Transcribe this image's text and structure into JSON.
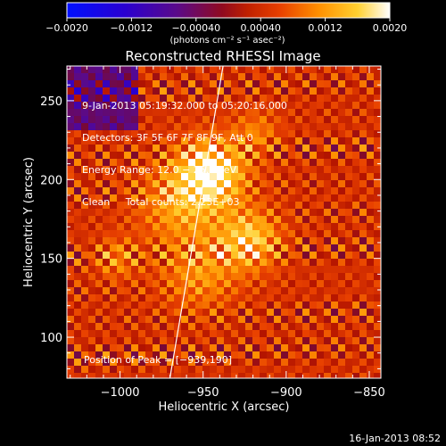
{
  "chart_data": {
    "type": "heatmap",
    "title": "Reconstructed RHESSI Image",
    "xlabel": "Heliocentric X (arcsec)",
    "ylabel": "Heliocentric Y (arcsec)",
    "xlim": [
      -1032,
      -843
    ],
    "ylim": [
      74,
      272
    ],
    "x_ticks": [
      -1000,
      -950,
      -900,
      -850
    ],
    "y_ticks": [
      100,
      150,
      200,
      250
    ],
    "x_tick_labels": [
      "−1000",
      "−950",
      "−900",
      "−850"
    ],
    "y_tick_labels": [
      "100",
      "150",
      "200",
      "250"
    ],
    "colorbar": {
      "min": -0.002,
      "max": 0.002,
      "ticks": [
        -0.002,
        -0.0012,
        -0.0004,
        0.0004,
        0.0012,
        0.002
      ],
      "tick_labels": [
        "−0.0020",
        "−0.0012",
        "−0.00040",
        "0.00040",
        "0.0012",
        "0.0020"
      ],
      "unit_label": "(photons cm⁻² s⁻¹ asec⁻²)",
      "colors": [
        "#0010ff",
        "#3a00c0",
        "#5a0a8a",
        "#b02000",
        "#e84000",
        "#ff9000",
        "#ffd030",
        "#ffffff"
      ]
    },
    "info_lines": [
      "9-Jan-2013 05:19:32.000 to 05:20:16.000",
      "Detectors: 3F 5F 6F 7F 8F 9F, Att 0",
      "Energy Range: 12.0 − 25.0 keV",
      "Clean     Total counts: 2.23E+03"
    ],
    "peak_label": "Position of Peak = [−939,190]",
    "peak_position": [
      -939,
      190
    ],
    "limb_line": [
      [
        -970,
        74
      ],
      [
        -938,
        272
      ]
    ],
    "emission_blobs": [
      {
        "x": -945,
        "y": 205,
        "sigma": 14,
        "amp": 1.0
      },
      {
        "x": -922,
        "y": 162,
        "sigma": 13,
        "amp": 0.75
      },
      {
        "x": -963,
        "y": 185,
        "sigma": 18,
        "amp": 0.55
      },
      {
        "x": -1002,
        "y": 150,
        "sigma": 9,
        "amp": 0.4
      },
      {
        "x": -918,
        "y": 230,
        "sigma": 10,
        "amp": 0.35
      },
      {
        "x": -952,
        "y": 140,
        "sigma": 16,
        "amp": 0.45
      }
    ]
  },
  "footer_timestamp": "16-Jan-2013 08:52"
}
